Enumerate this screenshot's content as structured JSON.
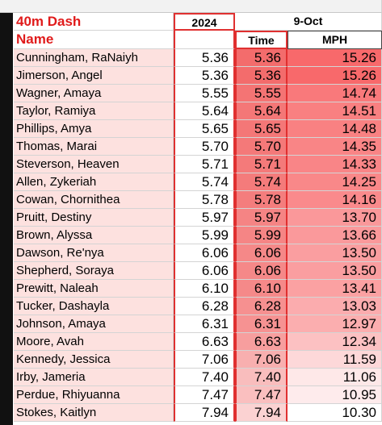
{
  "header": {
    "title": "40m Dash",
    "year": "2024",
    "date": "9-Oct",
    "name_label": "Name",
    "time_label": "Time",
    "mph_label": "MPH"
  },
  "table": {
    "rows": [
      [
        "Cunningham, RaNaiyh",
        "5.36",
        "5.36",
        "15.26"
      ],
      [
        "Jimerson, Angel",
        "5.36",
        "5.36",
        "15.26"
      ],
      [
        "Wagner, Amaya",
        "5.55",
        "5.55",
        "14.74"
      ],
      [
        "Taylor, Ramiya",
        "5.64",
        "5.64",
        "14.51"
      ],
      [
        "Phillips, Amya",
        "5.65",
        "5.65",
        "14.48"
      ],
      [
        "Thomas, Marai",
        "5.70",
        "5.70",
        "14.35"
      ],
      [
        "Steverson, Heaven",
        "5.71",
        "5.71",
        "14.33"
      ],
      [
        "Allen, Zykeriah",
        "5.74",
        "5.74",
        "14.25"
      ],
      [
        "Cowan, Chornithea",
        "5.78",
        "5.78",
        "14.16"
      ],
      [
        "Pruitt, Destiny",
        "5.97",
        "5.97",
        "13.70"
      ],
      [
        "Brown, Alyssa",
        "5.99",
        "5.99",
        "13.66"
      ],
      [
        "Dawson, Re'nya",
        "6.06",
        "6.06",
        "13.50"
      ],
      [
        "Shepherd, Soraya",
        "6.06",
        "6.06",
        "13.50"
      ],
      [
        "Prewitt, Naleah",
        "6.10",
        "6.10",
        "13.41"
      ],
      [
        "Tucker, Dashayla",
        "6.28",
        "6.28",
        "13.03"
      ],
      [
        "Johnson, Amaya",
        "6.31",
        "6.31",
        "12.97"
      ],
      [
        "Moore, Avah",
        "6.63",
        "6.63",
        "12.34"
      ],
      [
        "Kennedy, Jessica",
        "7.06",
        "7.06",
        "11.59"
      ],
      [
        "Irby, Jameria",
        "7.40",
        "7.40",
        "11.06"
      ],
      [
        "Perdue, Rhiyuanna",
        "7.47",
        "7.47",
        "10.95"
      ],
      [
        "Stokes, Kaitlyn",
        "7.94",
        "7.94",
        "10.30"
      ]
    ]
  }
}
